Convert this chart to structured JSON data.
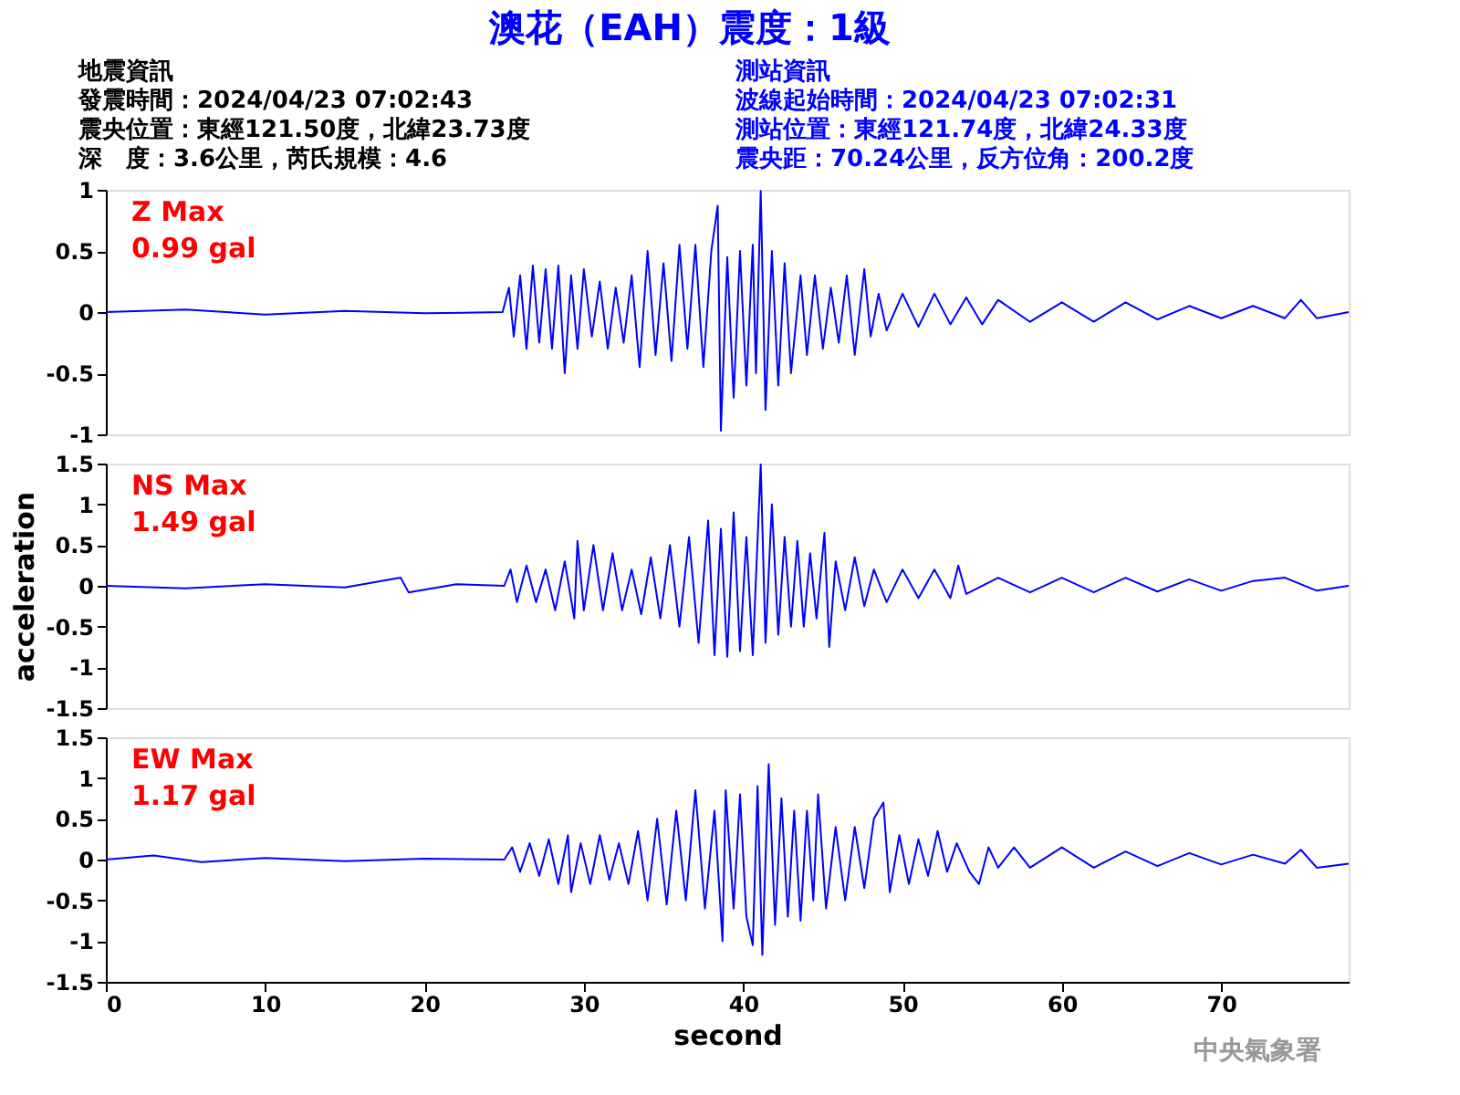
{
  "chart_data": [
    {
      "type": "line",
      "title": "澳花（EAH）震度：1級",
      "annotations": [
        "Z Max",
        "0.99 gal",
        "地震資訊",
        "發震時間：2024/04/23 07:02:43",
        "震央位置：東經121.50度，北緯23.73度",
        "深　度：3.6公里，芮氏規模：4.6",
        "測站資訊",
        "波線起始時間：2024/04/23 07:02:31",
        "測站位置：東經121.74度，北緯24.33度",
        "震央距：70.24公里，反方位角：200.2度"
      ],
      "xlim": [
        0,
        78
      ],
      "ylim": [
        -1,
        1
      ],
      "yticks": [
        -1,
        -0.5,
        0,
        0.5,
        1
      ],
      "tick_labels": "y",
      "grid": false,
      "series": [
        {
          "color": "#0000ff",
          "x": [
            0,
            5,
            10,
            15,
            20,
            24.9,
            25.3,
            25.6,
            26,
            26.4,
            26.8,
            27.2,
            27.6,
            28,
            28.4,
            28.8,
            29.2,
            29.6,
            30,
            30.5,
            31,
            31.5,
            32,
            32.5,
            33,
            33.5,
            34,
            34.5,
            35,
            35.5,
            36,
            36.5,
            37,
            37.5,
            38,
            38.4,
            38.6,
            39,
            39.4,
            39.8,
            40.2,
            40.6,
            40.8,
            41.1,
            41.4,
            41.8,
            42.2,
            42.6,
            43,
            43.6,
            44,
            44.5,
            45,
            45.5,
            46,
            46.5,
            47,
            47.6,
            48,
            48.5,
            49,
            50,
            51,
            52,
            53,
            54,
            55,
            56,
            58,
            60,
            62,
            64,
            66,
            68,
            70,
            72,
            74,
            75,
            76,
            78
          ],
          "values": [
            0,
            0.02,
            -0.02,
            0.01,
            -0.01,
            0,
            0.2,
            -0.2,
            0.3,
            -0.3,
            0.38,
            -0.25,
            0.35,
            -0.3,
            0.38,
            -0.5,
            0.3,
            -0.3,
            0.35,
            -0.2,
            0.25,
            -0.3,
            0.2,
            -0.25,
            0.3,
            -0.45,
            0.5,
            -0.35,
            0.4,
            -0.4,
            0.55,
            -0.3,
            0.55,
            -0.45,
            0.5,
            0.87,
            -0.97,
            0.45,
            -0.7,
            0.5,
            -0.6,
            0.55,
            -0.5,
            0.99,
            -0.8,
            0.5,
            -0.6,
            0.4,
            -0.5,
            0.3,
            -0.35,
            0.3,
            -0.3,
            0.2,
            -0.25,
            0.3,
            -0.35,
            0.35,
            -0.2,
            0.15,
            -0.15,
            0.15,
            -0.12,
            0.15,
            -0.1,
            0.12,
            -0.1,
            0.1,
            -0.08,
            0.08,
            -0.08,
            0.08,
            -0.06,
            0.05,
            -0.05,
            0.05,
            -0.05,
            0.1,
            -0.05,
            0
          ]
        }
      ]
    },
    {
      "type": "line",
      "ylabel": "acceleration",
      "annotations": [
        "NS Max",
        "1.49 gal"
      ],
      "xlim": [
        0,
        78
      ],
      "ylim": [
        -1.5,
        1.5
      ],
      "yticks": [
        -1.5,
        -1,
        -0.5,
        0,
        0.5,
        1,
        1.5
      ],
      "tick_labels": "y",
      "grid": false,
      "series": [
        {
          "color": "#0000ff",
          "x": [
            0,
            5,
            10,
            15,
            18.5,
            19,
            22,
            25,
            25.4,
            25.8,
            26.4,
            27,
            27.6,
            28.2,
            28.8,
            29.4,
            29.6,
            30,
            30.6,
            31.2,
            31.8,
            32.4,
            33,
            33.6,
            34.2,
            34.8,
            35.4,
            36,
            36.6,
            37.2,
            37.8,
            38.2,
            38.6,
            39,
            39.4,
            39.8,
            40.2,
            40.6,
            41.1,
            41.4,
            41.8,
            42.2,
            42.6,
            43,
            43.4,
            43.8,
            44.2,
            44.6,
            45.1,
            45.4,
            45.8,
            46.4,
            47,
            47.6,
            48.2,
            49,
            50,
            51,
            52,
            53,
            53.5,
            54,
            56,
            58,
            60,
            62,
            64,
            66,
            68,
            70,
            72,
            74,
            76,
            78
          ],
          "values": [
            0,
            -0.03,
            0.02,
            -0.02,
            0.1,
            -0.08,
            0.02,
            0,
            0.2,
            -0.2,
            0.25,
            -0.2,
            0.2,
            -0.3,
            0.3,
            -0.4,
            0.55,
            -0.3,
            0.5,
            -0.3,
            0.4,
            -0.3,
            0.2,
            -0.35,
            0.35,
            -0.4,
            0.5,
            -0.5,
            0.6,
            -0.7,
            0.8,
            -0.85,
            0.7,
            -0.87,
            0.9,
            -0.8,
            0.6,
            -0.85,
            1.49,
            -0.7,
            1.0,
            -0.6,
            0.6,
            -0.5,
            0.55,
            -0.5,
            0.4,
            -0.4,
            0.65,
            -0.75,
            0.3,
            -0.3,
            0.35,
            -0.25,
            0.2,
            -0.2,
            0.2,
            -0.15,
            0.2,
            -0.15,
            0.25,
            -0.1,
            0.1,
            -0.08,
            0.1,
            -0.08,
            0.1,
            -0.07,
            0.08,
            -0.06,
            0.06,
            0.1,
            -0.06,
            0
          ]
        }
      ]
    },
    {
      "type": "line",
      "xlabel": "second",
      "annotations": [
        "EW Max",
        "1.17 gal",
        "中央氣象署"
      ],
      "xlim": [
        0,
        78
      ],
      "xticks": [
        0,
        10,
        20,
        30,
        40,
        50,
        60,
        70
      ],
      "ylim": [
        -1.5,
        1.5
      ],
      "yticks": [
        -1.5,
        -1,
        -0.5,
        0,
        0.5,
        1,
        1.5
      ],
      "grid": false,
      "series": [
        {
          "color": "#0000ff",
          "x": [
            0,
            3,
            6,
            10,
            15,
            20,
            25,
            25.5,
            26,
            26.6,
            27.2,
            27.8,
            28.4,
            29,
            29.2,
            29.8,
            30.4,
            31,
            31.6,
            32.2,
            32.8,
            33.4,
            34,
            34.6,
            35.2,
            35.8,
            36.4,
            37,
            37.6,
            38.2,
            38.7,
            38.9,
            39.4,
            39.8,
            40.2,
            40.6,
            40.9,
            41.2,
            41.6,
            42,
            42.4,
            42.8,
            43.2,
            43.6,
            44,
            44.4,
            44.7,
            45.2,
            45.8,
            46.4,
            47,
            47.6,
            48.2,
            48.8,
            49.2,
            49.8,
            50.4,
            51,
            51.6,
            52.2,
            52.8,
            53.4,
            54.2,
            54.8,
            55.4,
            56,
            57,
            58,
            60,
            62,
            64,
            66,
            68,
            70,
            72,
            74,
            75,
            76,
            78
          ],
          "values": [
            0,
            0.05,
            -0.03,
            0.02,
            -0.02,
            0.01,
            0,
            0.15,
            -0.15,
            0.2,
            -0.2,
            0.25,
            -0.3,
            0.3,
            -0.4,
            0.2,
            -0.3,
            0.3,
            -0.25,
            0.2,
            -0.3,
            0.35,
            -0.5,
            0.5,
            -0.55,
            0.6,
            -0.5,
            0.85,
            -0.6,
            0.6,
            -1.0,
            0.85,
            -0.6,
            0.8,
            -0.7,
            -1.05,
            0.9,
            -1.17,
            1.17,
            -0.8,
            0.75,
            -0.7,
            0.6,
            -0.75,
            0.6,
            -0.5,
            0.8,
            -0.6,
            0.4,
            -0.5,
            0.4,
            -0.35,
            0.5,
            0.7,
            -0.4,
            0.3,
            -0.3,
            0.25,
            -0.2,
            0.35,
            -0.15,
            0.2,
            -0.15,
            -0.3,
            0.15,
            -0.1,
            0.15,
            -0.1,
            0.15,
            -0.1,
            0.1,
            -0.08,
            0.08,
            -0.06,
            0.06,
            -0.05,
            0.12,
            -0.1,
            -0.05
          ]
        }
      ]
    }
  ]
}
